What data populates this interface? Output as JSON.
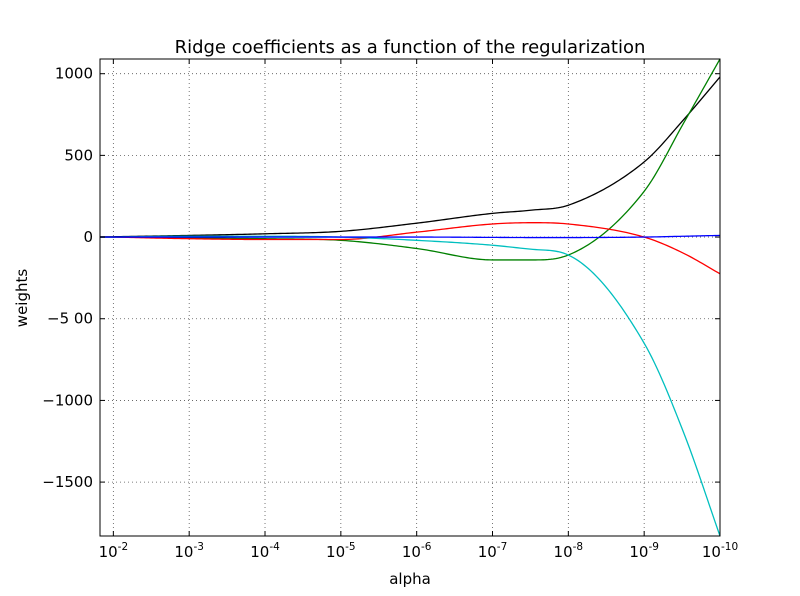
{
  "chart_data": {
    "type": "line",
    "title": "Ridge coefficients as a function of the regularization",
    "xlabel": "alpha",
    "ylabel": "weights",
    "xscale": "log",
    "x_direction": "reversed",
    "xlim": [
      0.015,
      1e-10
    ],
    "ylim": [
      -1830,
      1090
    ],
    "grid": true,
    "x_ticks": [
      {
        "base": "10",
        "exp": "-2",
        "value": 0.01
      },
      {
        "base": "10",
        "exp": "-3",
        "value": 0.001
      },
      {
        "base": "10",
        "exp": "-4",
        "value": 0.0001
      },
      {
        "base": "10",
        "exp": "-5",
        "value": 1e-05
      },
      {
        "base": "10",
        "exp": "-6",
        "value": 1e-06
      },
      {
        "base": "10",
        "exp": "-7",
        "value": 1e-07
      },
      {
        "base": "10",
        "exp": "-8",
        "value": 1e-08
      },
      {
        "base": "10",
        "exp": "-9",
        "value": 1e-09
      },
      {
        "base": "10",
        "exp": "-10",
        "value": 1e-10
      }
    ],
    "y_ticks": [
      {
        "label": "1000",
        "value": 1000
      },
      {
        "label": "500",
        "value": 500
      },
      {
        "label": "0",
        "value": 0
      },
      {
        "label": "−5 00",
        "value": -500
      },
      {
        "label": "−1000",
        "value": -1000
      },
      {
        "label": "−1500",
        "value": -1500
      }
    ],
    "x": [
      0.01,
      0.001,
      0.0001,
      1e-05,
      1e-06,
      1e-07,
      3e-08,
      1e-08,
      1e-09,
      3e-10,
      1e-10
    ],
    "series": [
      {
        "color": "#000000",
        "values": [
          2,
          10,
          20,
          35,
          85,
          145,
          165,
          195,
          460,
          720,
          980
        ]
      },
      {
        "color": "#008000",
        "values": [
          0,
          -5,
          -10,
          -20,
          -70,
          -140,
          -140,
          -110,
          280,
          700,
          1090
        ]
      },
      {
        "color": "#ff0000",
        "values": [
          0,
          -10,
          -15,
          -15,
          30,
          80,
          88,
          80,
          0,
          -100,
          -225
        ]
      },
      {
        "color": "#00bfbf",
        "values": [
          0,
          5,
          5,
          0,
          -20,
          -50,
          -75,
          -110,
          -650,
          -1200,
          -1830
        ]
      },
      {
        "color": "#0000ff",
        "values": [
          0,
          0,
          0,
          0,
          0,
          -2,
          -3,
          -3,
          0,
          5,
          10
        ]
      }
    ]
  }
}
